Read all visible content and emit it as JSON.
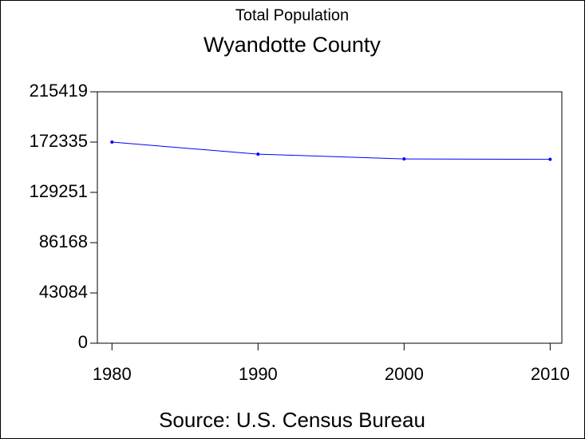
{
  "chart_data": {
    "type": "line",
    "title": "Total Population",
    "subtitle": "Wyandotte County",
    "footnote": "Source: U.S. Census Bureau",
    "x": [
      1980,
      1990,
      2000,
      2010
    ],
    "series": [
      {
        "color": "#0000ff",
        "values": [
          172335,
          161993,
          157882,
          157505
        ]
      }
    ],
    "xlim": [
      1979,
      2010.8
    ],
    "xticks": [
      1980,
      1990,
      2000,
      2010
    ],
    "ylim": [
      0,
      215419
    ],
    "yticks": [
      0,
      43084,
      86168,
      129251,
      172335,
      215419
    ]
  }
}
